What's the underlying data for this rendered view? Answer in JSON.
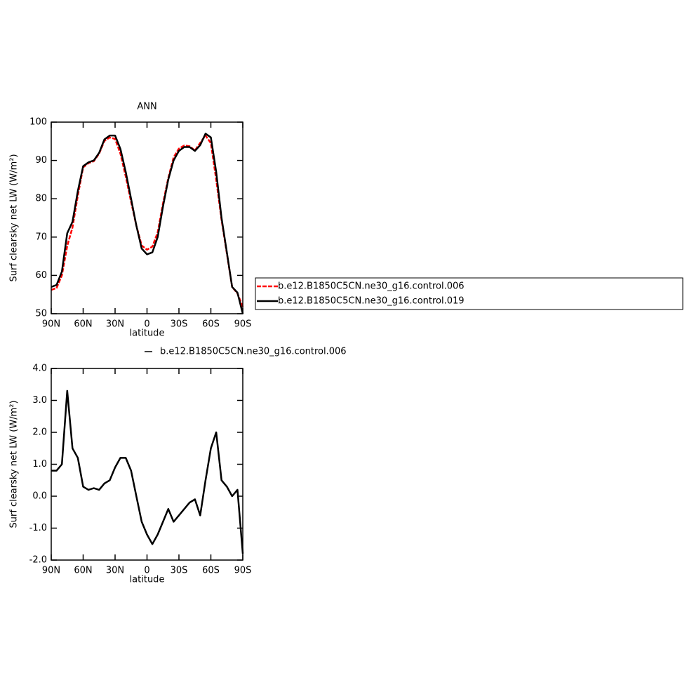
{
  "chart_data": [
    {
      "type": "line",
      "title": "ANN",
      "x_label": "latitude",
      "y_label": "Surf clearsky net LW (W/m²)",
      "x": [
        90,
        85,
        80,
        75,
        70,
        65,
        60,
        55,
        50,
        45,
        40,
        35,
        30,
        25,
        20,
        15,
        10,
        5,
        0,
        -5,
        -10,
        -15,
        -20,
        -25,
        -30,
        -35,
        -40,
        -45,
        -50,
        -55,
        -60,
        -65,
        -70,
        -75,
        -80,
        -85,
        -90
      ],
      "xlim": [
        90,
        -90
      ],
      "xticks": [
        {
          "value": 90,
          "label": "90N"
        },
        {
          "value": 60,
          "label": "60N"
        },
        {
          "value": 30,
          "label": "30N"
        },
        0,
        {
          "value": -30,
          "label": "30S"
        },
        {
          "value": -60,
          "label": "60S"
        },
        {
          "value": -90,
          "label": "90S"
        }
      ],
      "ylim": [
        50,
        100
      ],
      "yticks": [
        50,
        60,
        70,
        80,
        90,
        100
      ],
      "legend": "outside-right",
      "series": [
        {
          "name": "b.e12.B1850C5CN.ne30_g16.control.006",
          "color": "#ff0000",
          "dashed": true,
          "values": [
            56.2,
            56.7,
            60,
            67.7,
            72.5,
            80.8,
            88.2,
            89.3,
            89.8,
            91.8,
            95.1,
            96,
            95.6,
            91.8,
            85.8,
            79.2,
            73,
            67.8,
            66.7,
            67.5,
            71.2,
            78.8,
            85.4,
            90.8,
            93.1,
            93.9,
            93.7,
            92.6,
            94.6,
            96.5,
            94.5,
            85,
            74.5,
            65.7,
            57,
            55.3,
            51.8
          ]
        },
        {
          "name": "b.e12.B1850C5CN.ne30_g16.control.019",
          "color": "#000000",
          "dashed": false,
          "values": [
            57,
            57.5,
            61,
            71,
            74,
            82,
            88.5,
            89.5,
            90,
            92,
            95.5,
            96.5,
            96.5,
            93,
            87,
            80,
            73,
            67,
            65.5,
            66,
            70,
            78,
            85,
            90,
            92.5,
            93.5,
            93.5,
            92.5,
            94,
            97,
            96,
            87,
            75,
            66,
            57,
            55.5,
            50
          ]
        }
      ]
    },
    {
      "type": "line",
      "x_label": "latitude",
      "y_label": "Surf clearsky net LW (W/m²)",
      "x": [
        90,
        85,
        80,
        75,
        70,
        65,
        60,
        55,
        50,
        45,
        40,
        35,
        30,
        25,
        20,
        15,
        10,
        5,
        0,
        -5,
        -10,
        -15,
        -20,
        -25,
        -30,
        -35,
        -40,
        -45,
        -50,
        -55,
        -60,
        -65,
        -70,
        -75,
        -80,
        -85,
        -90
      ],
      "xlim": [
        90,
        -90
      ],
      "xticks": [
        {
          "value": 90,
          "label": "90N"
        },
        {
          "value": 60,
          "label": "60N"
        },
        {
          "value": 30,
          "label": "30N"
        },
        0,
        {
          "value": -30,
          "label": "30S"
        },
        {
          "value": -60,
          "label": "60S"
        },
        {
          "value": -90,
          "label": "90S"
        }
      ],
      "ylim": [
        -2,
        4
      ],
      "yticks": [
        {
          "value": -2,
          "label": "-2.0"
        },
        {
          "value": -1,
          "label": "-1.0"
        },
        {
          "value": 0,
          "label": "0.0"
        },
        {
          "value": 1,
          "label": "1.0"
        },
        {
          "value": 2,
          "label": "2.0"
        },
        {
          "value": 3,
          "label": "3.0"
        },
        {
          "value": 4,
          "label": "4.0"
        }
      ],
      "legend": "top",
      "series": [
        {
          "name": "b.e12.B1850C5CN.ne30_g16.control.006",
          "color": "#000000",
          "dashed": false,
          "values": [
            0.8,
            0.8,
            1.0,
            3.3,
            1.5,
            1.2,
            0.3,
            0.2,
            0.25,
            0.2,
            0.4,
            0.5,
            0.9,
            1.2,
            1.2,
            0.8,
            0.0,
            -0.8,
            -1.2,
            -1.5,
            -1.2,
            -0.8,
            -0.4,
            -0.8,
            -0.6,
            -0.4,
            -0.2,
            -0.1,
            -0.6,
            0.5,
            1.5,
            2.0,
            0.5,
            0.3,
            0.0,
            0.2,
            -1.8
          ]
        }
      ]
    }
  ]
}
